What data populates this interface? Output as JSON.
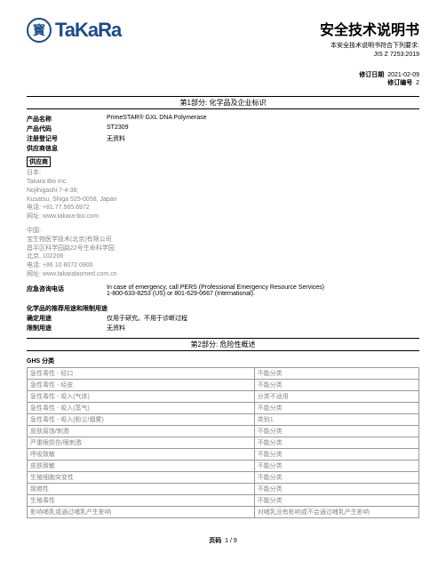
{
  "logo_char": "寳",
  "logo_text": "TaKaRa",
  "main_title": "安全技术说明书",
  "subtitle_line1": "本安全技术说明书符合下列要求:",
  "subtitle_line2": "JIS Z 7253:2019",
  "rev_date_label": "修订日期",
  "rev_date": "2021-02-09",
  "rev_num_label": "修订编号",
  "rev_num": "2",
  "section1": "第1部分: 化学品及企业标识",
  "section2": "第2部分: 危险性概述",
  "fields": {
    "product_name_label": "产品名称",
    "product_name": "PrimeSTAR® GXL DNA Polymerase",
    "product_code_label": "产品代码",
    "product_code": "ST2309",
    "reg_label": "注册登记号",
    "reg": "无资料",
    "supplier_info_label": "供应商信息",
    "supplier_header": "供应商"
  },
  "supplier_jp": "日本:\nTakara Bio Inc.\nNojihigashi 7-4-38,\nKusatsu, Shiga 525-0058, Japan\n电话: +81.77.565.6972\n网址: www.takara-bio.com",
  "supplier_cn": "中国:\n宝生物医学技术(北京)有限公司\n昌平区科学园路22号生命科学园\n北京, 102206\n电话: +86 10 8072 0900\n网址: www.takarabiomed.com.cn",
  "emergency_label": "应急咨询电话",
  "emergency": "In case of emergency, call PERS (Professional Emergency Resource Services)\n1-800-633-8253 (US) or 801-629-0667 (International).",
  "use_header": "化学品的推荐用途和限制用途",
  "use_conf_label": "确定用途",
  "use_conf": "仅用于研究。不用于诊断过程",
  "use_limit_label": "限制用途",
  "use_limit": "无资料",
  "ghs_header": "GHS 分类",
  "ghs_rows": [
    [
      "急性毒性 - 经口",
      "不能分类"
    ],
    [
      "急性毒性 - 经皮",
      "不能分类"
    ],
    [
      "急性毒性 - 吸入(气体)",
      "分类不适用"
    ],
    [
      "急性毒性 - 吸入(蒸气)",
      "不能分类"
    ],
    [
      "急性毒性 - 吸入(粉尘/烟雾)",
      "类别1"
    ],
    [
      "皮肤腐蚀/刺激",
      "不能分类"
    ],
    [
      "严重眼损伤/眼刺激",
      "不能分类"
    ],
    [
      "呼吸致敏",
      "不能分类"
    ],
    [
      "皮肤致敏",
      "不能分类"
    ],
    [
      "生殖细胞突变性",
      "不能分类"
    ],
    [
      "致癌性",
      "不能分类"
    ],
    [
      "生殖毒性",
      "不能分类"
    ],
    [
      "影响哺乳或通过哺乳产生影响",
      "对哺乳没有影响或不会通过哺乳产生影响"
    ]
  ],
  "page_label": "页码",
  "page": "1  /  9"
}
